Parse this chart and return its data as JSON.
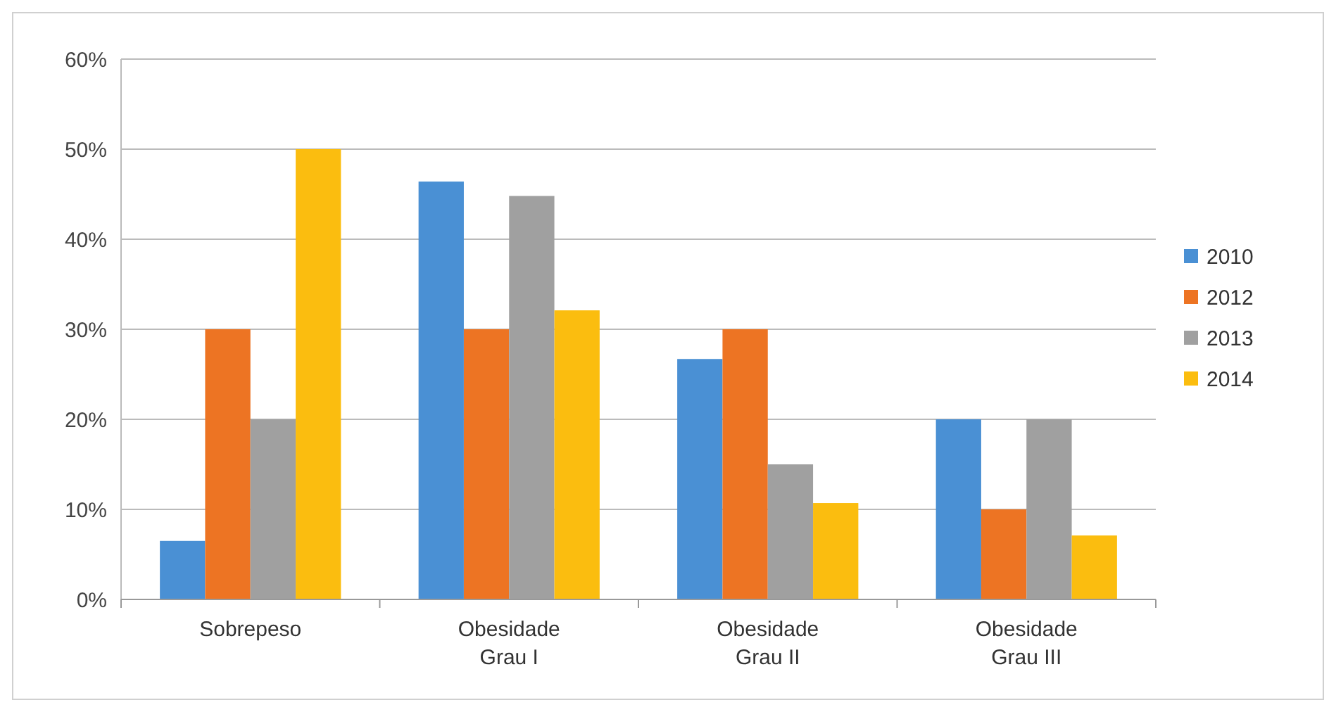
{
  "chart_data": {
    "type": "bar",
    "categories": [
      "Sobrepeso",
      "Obesidade\nGrau I",
      "Obesidade\nGrau II",
      "Obesidade\nGrau III"
    ],
    "series": [
      {
        "name": "2010",
        "color": "#4a90d4",
        "values": [
          6.5,
          46.4,
          26.7,
          20
        ]
      },
      {
        "name": "2012",
        "color": "#ed7423",
        "values": [
          30,
          30,
          30,
          10
        ]
      },
      {
        "name": "2013",
        "color": "#a0a0a0",
        "values": [
          20,
          44.8,
          15,
          20
        ]
      },
      {
        "name": "2014",
        "color": "#fbbd0f",
        "values": [
          50,
          32.1,
          10.7,
          7.1
        ]
      }
    ],
    "ylim": [
      0,
      60
    ],
    "yticks": [
      {
        "value": 0,
        "label": "0%"
      },
      {
        "value": 10,
        "label": "10%"
      },
      {
        "value": 20,
        "label": "20%"
      },
      {
        "value": 30,
        "label": "30%"
      },
      {
        "value": 40,
        "label": "40%"
      },
      {
        "value": 50,
        "label": "50%"
      },
      {
        "value": 60,
        "label": "60%"
      }
    ],
    "grid": "y",
    "legend": "right"
  }
}
